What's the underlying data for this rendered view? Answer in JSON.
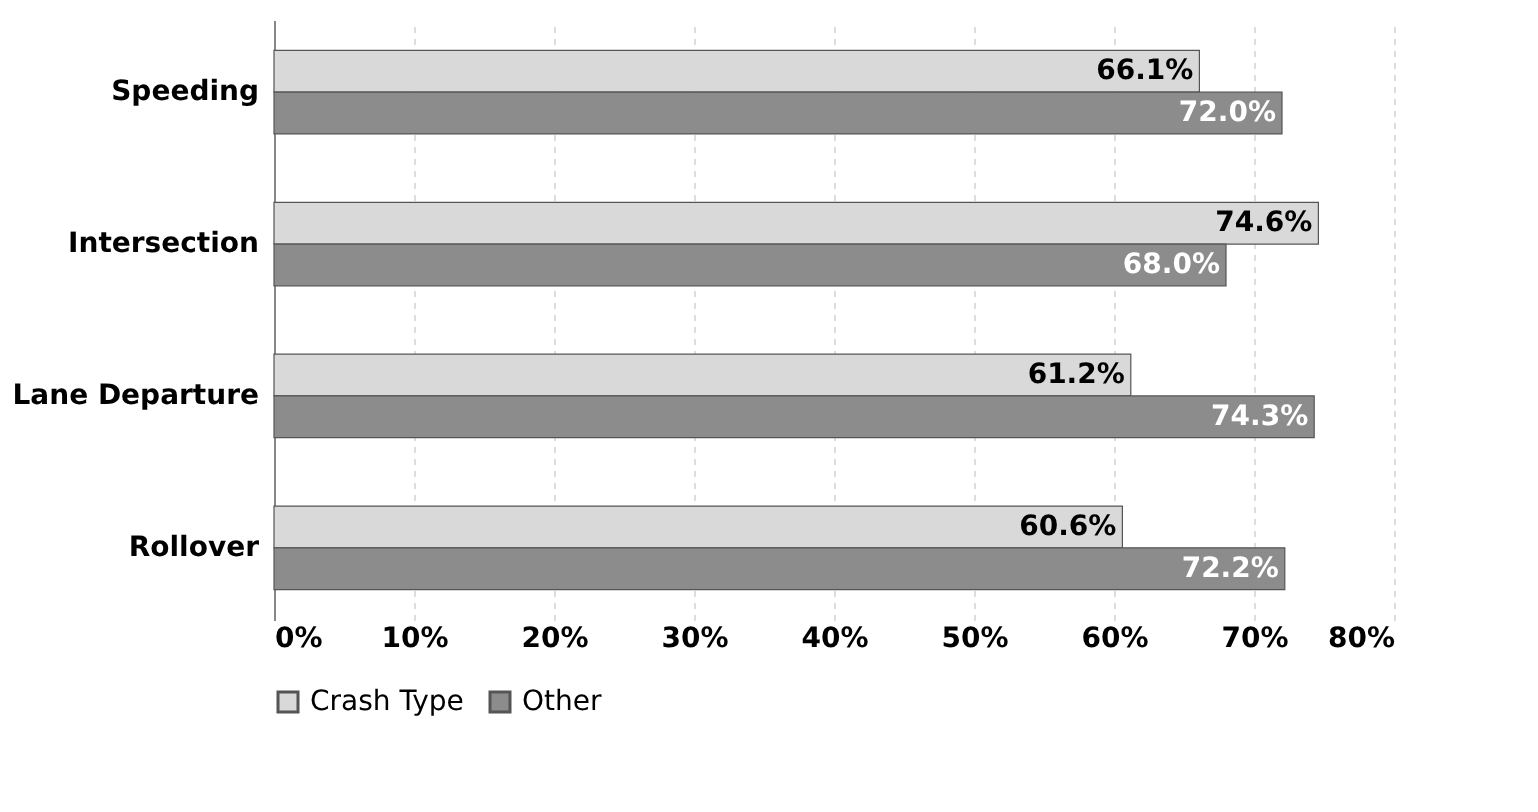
{
  "chart_data": {
    "type": "bar",
    "orientation": "horizontal",
    "categories": [
      "Speeding",
      "Intersection",
      "Lane Departure",
      "Rollover"
    ],
    "series": [
      {
        "name": "Crash Type",
        "color": "#d9d9d9",
        "values": [
          66.1,
          74.6,
          61.2,
          60.6
        ],
        "value_labels": [
          "66.1%",
          "74.6%",
          "61.2%",
          "60.6%"
        ]
      },
      {
        "name": "Other",
        "color": "#8c8c8c",
        "values": [
          72.0,
          68.0,
          74.3,
          72.2
        ],
        "value_labels": [
          "72.0%",
          "68.0%",
          "74.3%",
          "72.2%"
        ]
      }
    ],
    "xlim": [
      0,
      80
    ],
    "xticks": [
      {
        "value": 0,
        "label": "0%"
      },
      {
        "value": 10,
        "label": "10%"
      },
      {
        "value": 20,
        "label": "20%"
      },
      {
        "value": 30,
        "label": "30%"
      },
      {
        "value": 40,
        "label": "40%"
      },
      {
        "value": 50,
        "label": "50%"
      },
      {
        "value": 60,
        "label": "60%"
      },
      {
        "value": 70,
        "label": "70%"
      },
      {
        "value": 80,
        "label": "80%"
      }
    ],
    "grid": "x",
    "legend": "bottom"
  }
}
